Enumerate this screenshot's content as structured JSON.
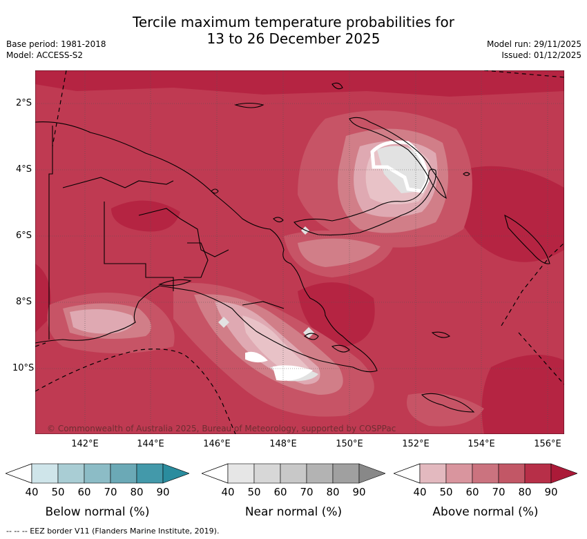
{
  "header": {
    "title_line1": "Tercile maximum temperature probabilities for",
    "title_line2": "13 to 26 December 2025",
    "base_period": "Base period: 1981-2018",
    "model": "Model: ACCESS-S2",
    "model_run": "Model run: 29/11/2025",
    "issued": "Issued: 01/12/2025"
  },
  "map": {
    "lat_ticks": [
      "2°S",
      "4°S",
      "6°S",
      "8°S",
      "10°S"
    ],
    "lon_ticks": [
      "142°E",
      "144°E",
      "146°E",
      "148°E",
      "150°E",
      "152°E",
      "154°E",
      "156°E"
    ],
    "copyright": "© Commonwealth of Australia 2025, Bureau of Meteorology, supported by COSPPac",
    "colors": {
      "above_base": "#bf3a52",
      "above_80": "#b52442",
      "above_70": "#c75466",
      "above_60": "#d17e88",
      "above_50": "#dfa9b2",
      "above_40": "#e8c2c7",
      "near_40": "#e2e2e2",
      "land_outline": "#000000"
    }
  },
  "legends": [
    {
      "title": "Below normal (%)",
      "ticks": [
        "40",
        "50",
        "60",
        "70",
        "80",
        "90"
      ],
      "colors": [
        "#cfe5ea",
        "#a9cdd4",
        "#8cbcc6",
        "#6ba9b6",
        "#4399aa",
        "#2a8c9e"
      ]
    },
    {
      "title": "Near normal (%)",
      "ticks": [
        "40",
        "50",
        "60",
        "70",
        "80",
        "90"
      ],
      "colors": [
        "#e6e6e6",
        "#d7d7d7",
        "#c8c8c8",
        "#b3b3b3",
        "#a0a0a0",
        "#888888"
      ]
    },
    {
      "title": "Above normal (%)",
      "ticks": [
        "40",
        "50",
        "60",
        "70",
        "80",
        "90"
      ],
      "colors": [
        "#e3b9bf",
        "#d9959e",
        "#cb737f",
        "#c25766",
        "#b72f48",
        "#ab1a38"
      ]
    }
  ],
  "footnote": "--  --  -- EEZ border V11 (Flanders Marine Institute, 2019)."
}
